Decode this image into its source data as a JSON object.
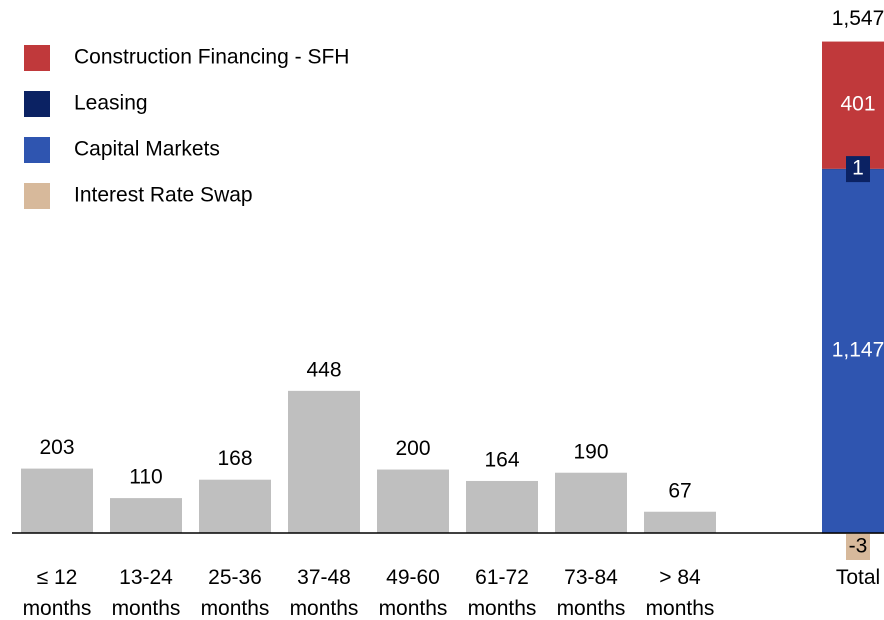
{
  "chart_data": {
    "type": "bar",
    "categories": [
      "≤ 12 months",
      "13-24 months",
      "25-36 months",
      "37-48 months",
      "49-60 months",
      "61-72 months",
      "73-84 months",
      "> 84 months"
    ],
    "values": [
      203,
      110,
      168,
      448,
      200,
      164,
      190,
      67
    ],
    "color": "#bfbfbf",
    "ylim": [
      0,
      1680
    ],
    "total": {
      "category": "Total",
      "value": 1547,
      "value_label": "1,547",
      "series": [
        {
          "name": "Construction Financing - SFH",
          "color": "#c0393b",
          "value": 401
        },
        {
          "name": "Leasing",
          "color": "#0b2263",
          "value": 1
        },
        {
          "name": "Capital Markets",
          "color": "#2f55b0",
          "value": 1147,
          "value_label": "1,147"
        },
        {
          "name": "Interest Rate Swap",
          "color": "#d7b99b",
          "value": -3
        }
      ]
    }
  }
}
